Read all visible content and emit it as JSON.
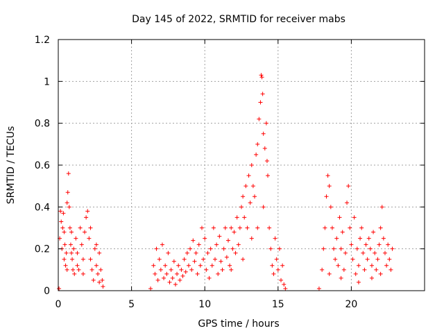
{
  "chart_data": {
    "type": "scatter",
    "title": "Day 145 of 2022, SRMTID for receiver mabs",
    "xlabel": "GPS time / hours",
    "ylabel": "SRMTID / TECUs",
    "xlim": [
      0,
      25
    ],
    "ylim": [
      0,
      1.2
    ],
    "xticks": [
      0,
      5,
      10,
      15,
      20
    ],
    "xtick_labels": [
      "0",
      "5",
      "10",
      "15",
      "20"
    ],
    "yticks": [
      0,
      0.2,
      0.4,
      0.6,
      0.8,
      1.0,
      1.2
    ],
    "ytick_labels": [
      "0",
      "0.2",
      "0.4",
      "0.6",
      "0.8",
      "1",
      "1.2"
    ],
    "grid": true,
    "marker": "+",
    "color": "#ff0000",
    "series": [
      {
        "name": "SRMTID",
        "points": [
          [
            0.05,
            0.01
          ],
          [
            0.1,
            0.25
          ],
          [
            0.15,
            0.38
          ],
          [
            0.2,
            0.33
          ],
          [
            0.25,
            0.2
          ],
          [
            0.3,
            0.3
          ],
          [
            0.35,
            0.37
          ],
          [
            0.4,
            0.15
          ],
          [
            0.45,
            0.22
          ],
          [
            0.5,
            0.12
          ],
          [
            0.55,
            0.18
          ],
          [
            0.6,
            0.42
          ],
          [
            0.65,
            0.47
          ],
          [
            0.7,
            0.56
          ],
          [
            0.75,
            0.4
          ],
          [
            0.8,
            0.3
          ],
          [
            0.85,
            0.22
          ],
          [
            0.9,
            0.28
          ],
          [
            0.95,
            0.15
          ],
          [
            1.0,
            0.1
          ],
          [
            1.05,
            0.2
          ],
          [
            1.1,
            0.08
          ],
          [
            1.2,
            0.25
          ],
          [
            1.3,
            0.18
          ],
          [
            1.4,
            0.1
          ],
          [
            1.5,
            0.3
          ],
          [
            1.6,
            0.22
          ],
          [
            1.7,
            0.15
          ],
          [
            1.8,
            0.28
          ],
          [
            1.9,
            0.35
          ],
          [
            2.0,
            0.38
          ],
          [
            2.1,
            0.25
          ],
          [
            2.2,
            0.15
          ],
          [
            2.3,
            0.1
          ],
          [
            2.4,
            0.05
          ],
          [
            2.5,
            0.2
          ],
          [
            2.6,
            0.12
          ],
          [
            2.7,
            0.08
          ],
          [
            2.8,
            0.18
          ],
          [
            2.9,
            0.1
          ],
          [
            3.0,
            0.05
          ],
          [
            3.05,
            0.02
          ],
          [
            0.4,
            0.28
          ],
          [
            0.9,
            0.18
          ],
          [
            1.3,
            0.12
          ],
          [
            2.2,
            0.3
          ],
          [
            2.6,
            0.22
          ],
          [
            1.7,
            0.08
          ],
          [
            0.6,
            0.1
          ],
          [
            2.8,
            0.04
          ],
          [
            6.3,
            0.01
          ],
          [
            6.5,
            0.12
          ],
          [
            6.6,
            0.08
          ],
          [
            6.7,
            0.2
          ],
          [
            6.8,
            0.05
          ],
          [
            6.9,
            0.15
          ],
          [
            7.0,
            0.1
          ],
          [
            7.1,
            0.22
          ],
          [
            7.2,
            0.06
          ],
          [
            7.3,
            0.12
          ],
          [
            7.4,
            0.08
          ],
          [
            7.5,
            0.18
          ],
          [
            7.6,
            0.04
          ],
          [
            7.7,
            0.1
          ],
          [
            7.8,
            0.06
          ],
          [
            7.9,
            0.14
          ],
          [
            8.0,
            0.03
          ],
          [
            8.1,
            0.08
          ],
          [
            8.2,
            0.12
          ],
          [
            8.3,
            0.05
          ],
          [
            8.4,
            0.1
          ],
          [
            8.5,
            0.07
          ],
          [
            8.6,
            0.15
          ],
          [
            8.7,
            0.09
          ],
          [
            8.8,
            0.18
          ],
          [
            8.9,
            0.12
          ],
          [
            9.0,
            0.2
          ],
          [
            9.1,
            0.1
          ],
          [
            9.2,
            0.24
          ],
          [
            9.3,
            0.14
          ],
          [
            9.4,
            0.18
          ],
          [
            9.5,
            0.08
          ],
          [
            9.6,
            0.22
          ],
          [
            9.7,
            0.12
          ],
          [
            9.8,
            0.3
          ],
          [
            9.9,
            0.15
          ],
          [
            10.0,
            0.25
          ],
          [
            10.1,
            0.1
          ],
          [
            10.2,
            0.18
          ],
          [
            10.3,
            0.06
          ],
          [
            10.4,
            0.2
          ],
          [
            10.5,
            0.12
          ],
          [
            10.6,
            0.3
          ],
          [
            10.7,
            0.15
          ],
          [
            10.8,
            0.22
          ],
          [
            10.9,
            0.08
          ],
          [
            11.0,
            0.26
          ],
          [
            11.1,
            0.14
          ],
          [
            11.2,
            0.1
          ],
          [
            11.3,
            0.2
          ],
          [
            11.4,
            0.3
          ],
          [
            11.5,
            0.16
          ],
          [
            11.6,
            0.24
          ],
          [
            11.7,
            0.12
          ],
          [
            11.8,
            0.3
          ],
          [
            11.9,
            0.2
          ],
          [
            12.0,
            0.28
          ],
          [
            12.1,
            0.18
          ],
          [
            12.2,
            0.35
          ],
          [
            12.3,
            0.22
          ],
          [
            12.4,
            0.3
          ],
          [
            12.5,
            0.4
          ],
          [
            12.6,
            0.45
          ],
          [
            12.7,
            0.35
          ],
          [
            12.8,
            0.5
          ],
          [
            12.9,
            0.3
          ],
          [
            13.0,
            0.55
          ],
          [
            13.1,
            0.42
          ],
          [
            13.2,
            0.6
          ],
          [
            13.3,
            0.5
          ],
          [
            13.4,
            0.45
          ],
          [
            13.5,
            0.65
          ],
          [
            13.6,
            0.7
          ],
          [
            13.7,
            0.82
          ],
          [
            13.8,
            0.9
          ],
          [
            13.85,
            1.03
          ],
          [
            13.9,
            1.02
          ],
          [
            13.95,
            0.94
          ],
          [
            14.0,
            0.75
          ],
          [
            14.1,
            0.68
          ],
          [
            14.2,
            0.8
          ],
          [
            14.25,
            0.62
          ],
          [
            14.3,
            0.55
          ],
          [
            14.4,
            0.3
          ],
          [
            14.5,
            0.2
          ],
          [
            14.6,
            0.12
          ],
          [
            14.7,
            0.08
          ],
          [
            14.8,
            0.25
          ],
          [
            14.9,
            0.15
          ],
          [
            15.0,
            0.1
          ],
          [
            15.1,
            0.2
          ],
          [
            15.2,
            0.05
          ],
          [
            15.3,
            0.12
          ],
          [
            15.4,
            0.03
          ],
          [
            15.5,
            0.01
          ],
          [
            13.2,
            0.25
          ],
          [
            13.6,
            0.3
          ],
          [
            14.0,
            0.4
          ],
          [
            12.6,
            0.15
          ],
          [
            11.8,
            0.1
          ],
          [
            17.8,
            0.01
          ],
          [
            18.0,
            0.1
          ],
          [
            18.1,
            0.2
          ],
          [
            18.2,
            0.3
          ],
          [
            18.3,
            0.45
          ],
          [
            18.4,
            0.55
          ],
          [
            18.5,
            0.5
          ],
          [
            18.6,
            0.4
          ],
          [
            18.7,
            0.3
          ],
          [
            18.8,
            0.2
          ],
          [
            18.9,
            0.15
          ],
          [
            19.0,
            0.25
          ],
          [
            19.1,
            0.12
          ],
          [
            19.2,
            0.35
          ],
          [
            19.3,
            0.2
          ],
          [
            19.4,
            0.28
          ],
          [
            19.5,
            0.1
          ],
          [
            19.6,
            0.18
          ],
          [
            19.7,
            0.42
          ],
          [
            19.8,
            0.5
          ],
          [
            19.9,
            0.3
          ],
          [
            20.0,
            0.22
          ],
          [
            20.1,
            0.15
          ],
          [
            20.2,
            0.35
          ],
          [
            20.3,
            0.08
          ],
          [
            20.4,
            0.2
          ],
          [
            20.5,
            0.12
          ],
          [
            20.6,
            0.25
          ],
          [
            20.7,
            0.3
          ],
          [
            20.8,
            0.18
          ],
          [
            20.9,
            0.1
          ],
          [
            21.0,
            0.22
          ],
          [
            21.1,
            0.15
          ],
          [
            21.2,
            0.25
          ],
          [
            21.3,
            0.2
          ],
          [
            21.4,
            0.12
          ],
          [
            21.5,
            0.28
          ],
          [
            21.6,
            0.18
          ],
          [
            21.7,
            0.1
          ],
          [
            21.8,
            0.15
          ],
          [
            21.9,
            0.22
          ],
          [
            22.0,
            0.3
          ],
          [
            22.1,
            0.4
          ],
          [
            22.2,
            0.25
          ],
          [
            22.3,
            0.18
          ],
          [
            22.4,
            0.12
          ],
          [
            22.5,
            0.22
          ],
          [
            22.6,
            0.15
          ],
          [
            22.7,
            0.1
          ],
          [
            22.8,
            0.2
          ],
          [
            18.5,
            0.08
          ],
          [
            19.3,
            0.06
          ],
          [
            20.5,
            0.04
          ],
          [
            21.4,
            0.06
          ],
          [
            22.0,
            0.08
          ]
        ]
      }
    ]
  }
}
